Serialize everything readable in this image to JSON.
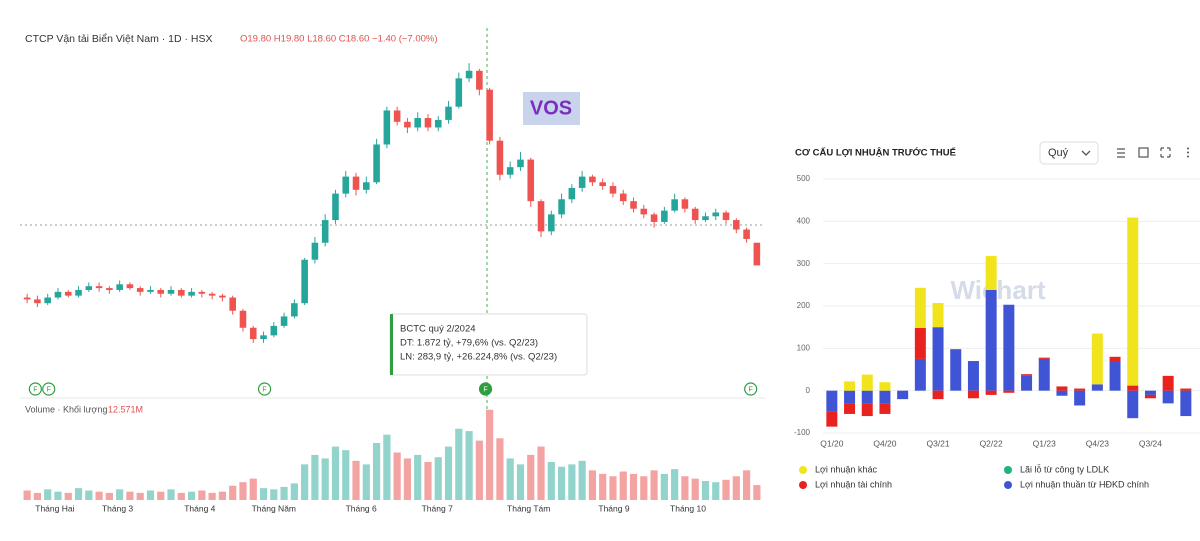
{
  "chart_data": [
    {
      "type": "candlestick",
      "title": "CTCP Vận tải Biển Việt Nam · 1D · HSX",
      "ohlc_label": "O19.80 H19.80 L18.60 C18.60 −1.40 (−7.00%)",
      "annotation": "VOS",
      "tooltip": [
        "BCTC quý 2/2024",
        "DT: 1.872 tỷ, +79,6% (vs. Q2/23)",
        "LN: 283,9 tỷ, +26.224,8% (vs. Q2/23)"
      ],
      "volume_label": "Volume · Khối lượng",
      "volume_value_label": "12.571M",
      "up_color": "#26a69a",
      "down_color": "#ef5350",
      "volume_up_color": "#92d4cc",
      "volume_down_color": "#f4a3a3",
      "ylim": [
        12.8,
        30.0
      ],
      "volume_ylim": [
        0,
        80
      ],
      "xticks": [
        {
          "value": 2.7,
          "label": "Tháng Hai"
        },
        {
          "value": 8.8,
          "label": "Tháng 3"
        },
        {
          "value": 16.8,
          "label": "Tháng 4"
        },
        {
          "value": 24.0,
          "label": "Tháng Năm"
        },
        {
          "value": 32.5,
          "label": "Tháng 6"
        },
        {
          "value": 39.9,
          "label": "Tháng 7"
        },
        {
          "value": 48.8,
          "label": "Tháng Tám"
        },
        {
          "value": 57.1,
          "label": "Tháng 9"
        },
        {
          "value": 64.3,
          "label": "Tháng 10"
        }
      ],
      "events": [
        {
          "index": 0.8,
          "label": "F"
        },
        {
          "index": 2.1,
          "label": "F"
        },
        {
          "index": 23.1,
          "label": "F"
        },
        {
          "index": 44.6,
          "label": "F",
          "filled": true
        },
        {
          "index": 70.4,
          "label": "F"
        }
      ],
      "open": [
        16.9,
        16.8,
        16.6,
        16.9,
        17.2,
        17.0,
        17.3,
        17.5,
        17.4,
        17.3,
        17.6,
        17.4,
        17.2,
        17.3,
        17.1,
        17.3,
        17.0,
        17.2,
        17.1,
        17.0,
        16.9,
        16.2,
        15.3,
        14.7,
        14.9,
        15.4,
        15.9,
        16.6,
        18.9,
        19.8,
        21.0,
        22.4,
        23.3,
        22.6,
        23.0,
        25.0,
        26.8,
        26.2,
        25.9,
        26.4,
        25.9,
        26.3,
        27.0,
        28.5,
        28.9,
        27.9,
        25.2,
        23.4,
        23.8,
        24.2,
        22.0,
        20.4,
        21.3,
        22.1,
        22.7,
        23.3,
        23.0,
        22.8,
        22.4,
        22.0,
        21.6,
        21.3,
        20.9,
        21.5,
        22.1,
        21.6,
        21.0,
        21.2,
        21.4,
        21.0,
        20.5,
        19.8
      ],
      "high": [
        17.1,
        17.0,
        17.1,
        17.4,
        17.3,
        17.5,
        17.7,
        17.7,
        17.5,
        17.8,
        17.7,
        17.5,
        17.5,
        17.4,
        17.5,
        17.4,
        17.4,
        17.3,
        17.2,
        17.1,
        17.0,
        16.3,
        15.4,
        15.1,
        15.6,
        16.1,
        16.8,
        19.0,
        20.1,
        21.3,
        22.6,
        23.6,
        23.5,
        23.3,
        25.3,
        27.0,
        27.0,
        26.4,
        26.7,
        26.6,
        26.5,
        27.3,
        28.8,
        29.3,
        29.0,
        28.0,
        25.4,
        24.1,
        24.6,
        24.3,
        22.1,
        21.5,
        22.4,
        22.9,
        23.6,
        23.4,
        23.2,
        23.0,
        22.6,
        22.2,
        21.8,
        21.4,
        21.7,
        22.4,
        22.2,
        21.7,
        21.4,
        21.6,
        21.5,
        21.1,
        20.6,
        19.8
      ],
      "low": [
        16.6,
        16.4,
        16.5,
        16.8,
        16.9,
        16.9,
        17.2,
        17.2,
        17.1,
        17.2,
        17.3,
        17.0,
        17.1,
        16.9,
        17.0,
        16.9,
        16.9,
        16.9,
        16.8,
        16.7,
        16.0,
        15.1,
        14.5,
        14.5,
        14.8,
        15.3,
        15.8,
        16.5,
        18.7,
        19.6,
        20.8,
        22.2,
        22.3,
        22.4,
        22.9,
        24.8,
        26.0,
        25.6,
        25.7,
        25.7,
        25.7,
        26.1,
        26.9,
        28.3,
        27.6,
        25.0,
        23.1,
        23.2,
        23.6,
        21.7,
        20.1,
        20.2,
        21.1,
        21.9,
        22.5,
        22.8,
        22.6,
        22.2,
        21.8,
        21.4,
        21.1,
        20.6,
        20.8,
        21.4,
        21.4,
        20.8,
        20.9,
        21.0,
        20.8,
        20.3,
        19.8,
        18.6
      ],
      "close": [
        16.8,
        16.6,
        16.9,
        17.2,
        17.0,
        17.3,
        17.5,
        17.4,
        17.3,
        17.6,
        17.4,
        17.2,
        17.3,
        17.1,
        17.3,
        17.0,
        17.2,
        17.1,
        17.0,
        16.9,
        16.2,
        15.3,
        14.7,
        14.9,
        15.4,
        15.9,
        16.6,
        18.9,
        19.8,
        21.0,
        22.4,
        23.3,
        22.6,
        23.0,
        25.0,
        26.8,
        26.2,
        25.9,
        26.4,
        25.9,
        26.3,
        27.0,
        28.5,
        28.9,
        27.9,
        25.2,
        23.4,
        23.8,
        24.2,
        22.0,
        20.4,
        21.3,
        22.1,
        22.7,
        23.3,
        23.0,
        22.8,
        22.4,
        22.0,
        21.6,
        21.3,
        20.9,
        21.5,
        22.1,
        21.6,
        21.0,
        21.2,
        21.4,
        21.0,
        20.5,
        20.0,
        18.6
      ],
      "volume": [
        8,
        6,
        9,
        7,
        6,
        10,
        8,
        7,
        6,
        9,
        7,
        6,
        8,
        7,
        9,
        6,
        7,
        8,
        6,
        7,
        12,
        15,
        18,
        10,
        9,
        11,
        14,
        30,
        38,
        35,
        45,
        42,
        33,
        30,
        48,
        55,
        40,
        35,
        38,
        32,
        36,
        45,
        60,
        58,
        50,
        76,
        52,
        35,
        30,
        38,
        45,
        32,
        28,
        30,
        33,
        25,
        22,
        20,
        24,
        22,
        20,
        25,
        22,
        26,
        20,
        18,
        16,
        15,
        17,
        20,
        25,
        12.571
      ]
    },
    {
      "type": "stacked_bar",
      "title": "CƠ CẤU LỢI NHUẬN TRƯỚC THUẾ",
      "period": "Quý",
      "watermark": "Wichart",
      "categories": [
        "Q1/20",
        null,
        null,
        "Q4/20",
        null,
        null,
        "Q3/21",
        null,
        null,
        "Q2/22",
        null,
        null,
        "Q1/23",
        null,
        null,
        "Q4/23",
        null,
        null,
        "Q3/24",
        null,
        null
      ],
      "ylim": [
        -100,
        500
      ],
      "yticks": [
        -100,
        0,
        100,
        200,
        300,
        400,
        500
      ],
      "grid": true,
      "series": [
        {
          "name": "Lợi nhuận khác",
          "color": "#f2e41c",
          "values": [
            0,
            22,
            38,
            20,
            0,
            95,
            57,
            0,
            0,
            80,
            0,
            0,
            0,
            0,
            0,
            120,
            0,
            397,
            0,
            0,
            0
          ]
        },
        {
          "name": "Lợi nhuận tài chính",
          "color": "#e8231f",
          "values": [
            -35,
            -25,
            -30,
            -25,
            0,
            73,
            -20,
            0,
            -18,
            -10,
            -5,
            4,
            3,
            10,
            5,
            0,
            10,
            12,
            -8,
            35,
            5
          ]
        },
        {
          "name": "Lãi lỗ từ công ty LDLK",
          "color": "#1fb57a",
          "values": [
            0,
            0,
            0,
            0,
            0,
            0,
            0,
            0,
            0,
            0,
            0,
            0,
            0,
            0,
            0,
            0,
            0,
            0,
            0,
            0,
            0
          ]
        },
        {
          "name": "Lợi nhuận thuần từ HĐKD chính",
          "color": "#3f55d6",
          "values": [
            -50,
            -30,
            -30,
            -30,
            -20,
            75,
            150,
            98,
            70,
            238,
            203,
            35,
            75,
            -12,
            -35,
            15,
            70,
            -65,
            -10,
            -30,
            -60
          ]
        }
      ]
    }
  ]
}
